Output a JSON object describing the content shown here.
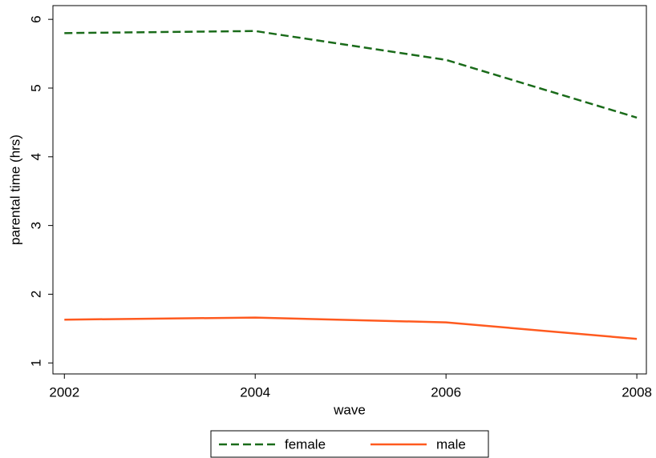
{
  "chart_data": {
    "type": "line",
    "x": [
      2002,
      2004,
      2006,
      2008
    ],
    "series": [
      {
        "name": "female",
        "color": "#1a6b1a",
        "dash": true,
        "values": [
          5.8,
          5.83,
          5.41,
          4.57
        ]
      },
      {
        "name": "male",
        "color": "#ff5a1f",
        "dash": false,
        "values": [
          1.63,
          1.66,
          1.59,
          1.35
        ]
      }
    ],
    "xlim": [
      2001.88,
      2008.1
    ],
    "xticks": [
      2002,
      2004,
      2006,
      2008
    ],
    "ylim": [
      0.84,
      6.2
    ],
    "yticks": [
      1,
      2,
      3,
      4,
      5,
      6
    ],
    "xlabel": "wave",
    "ylabel": "parental time (hrs)",
    "grid": false,
    "legend": "bottom"
  }
}
